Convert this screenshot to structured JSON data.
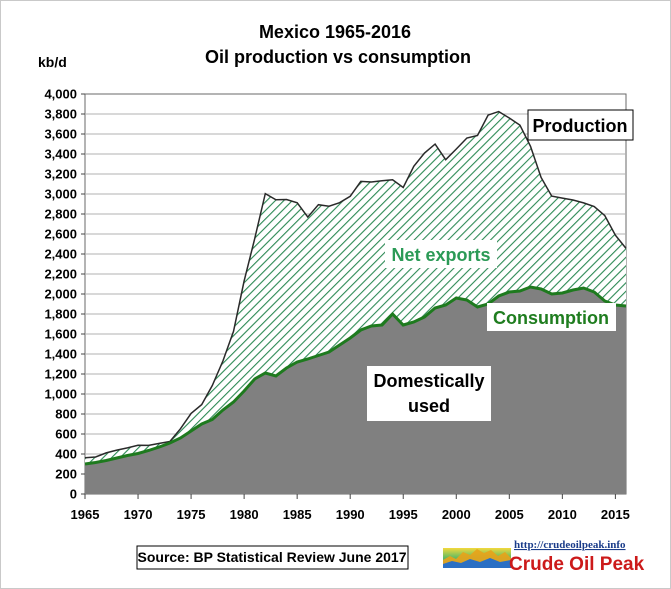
{
  "chart_data": {
    "type": "area",
    "title": "Mexico 1965-2016",
    "subtitle": "Oil production vs consumption",
    "ylabel": "kb/d",
    "xlabel": "",
    "xlim": [
      1965,
      2016
    ],
    "ylim": [
      0,
      4000
    ],
    "x_ticks": [
      1965,
      1970,
      1975,
      1980,
      1985,
      1990,
      1995,
      2000,
      2005,
      2010,
      2015
    ],
    "y_ticks": [
      0,
      200,
      400,
      600,
      800,
      1000,
      1200,
      1400,
      1600,
      1800,
      2000,
      2200,
      2400,
      2600,
      2800,
      3000,
      3200,
      3400,
      3600,
      3800,
      4000
    ],
    "y_tick_labels": [
      "0",
      "200",
      "400",
      "600",
      "800",
      "1,000",
      "1,200",
      "1,400",
      "1,600",
      "1,800",
      "2,000",
      "2,200",
      "2,400",
      "2,600",
      "2,800",
      "3,000",
      "3,200",
      "3,400",
      "3,600",
      "3,800",
      "4,000"
    ],
    "grid": true,
    "years": [
      1965,
      1966,
      1967,
      1968,
      1969,
      1970,
      1971,
      1972,
      1973,
      1974,
      1975,
      1976,
      1977,
      1978,
      1979,
      1980,
      1981,
      1982,
      1983,
      1984,
      1985,
      1986,
      1987,
      1988,
      1989,
      1990,
      1991,
      1992,
      1993,
      1994,
      1995,
      1996,
      1997,
      1998,
      1999,
      2000,
      2001,
      2002,
      2003,
      2004,
      2005,
      2006,
      2007,
      2008,
      2009,
      2010,
      2011,
      2012,
      2013,
      2014,
      2015,
      2016
    ],
    "series": [
      {
        "name": "Production",
        "values": [
          362,
          370,
          411,
          439,
          461,
          487,
          486,
          506,
          525,
          653,
          806,
          894,
          1085,
          1330,
          1626,
          2129,
          2553,
          3004,
          2942,
          2945,
          2912,
          2769,
          2893,
          2878,
          2913,
          2977,
          3126,
          3120,
          3132,
          3142,
          3065,
          3277,
          3410,
          3499,
          3343,
          3450,
          3560,
          3585,
          3789,
          3824,
          3760,
          3689,
          3477,
          3165,
          2979,
          2959,
          2940,
          2911,
          2875,
          2784,
          2588,
          2456
        ]
      },
      {
        "name": "Consumption",
        "values": [
          300,
          315,
          335,
          360,
          385,
          405,
          435,
          470,
          510,
          560,
          630,
          700,
          745,
          840,
          920,
          1030,
          1150,
          1210,
          1180,
          1260,
          1320,
          1350,
          1385,
          1420,
          1490,
          1560,
          1640,
          1680,
          1690,
          1800,
          1690,
          1720,
          1770,
          1860,
          1890,
          1960,
          1940,
          1870,
          1900,
          1980,
          2020,
          2030,
          2070,
          2050,
          2000,
          2010,
          2040,
          2060,
          2020,
          1930,
          1890,
          1880
        ]
      }
    ],
    "area_labels": {
      "net_exports": "Net exports",
      "domestic_line1": "Domestically",
      "domestic_line2": "used"
    },
    "source": "Source: BP Statistical Review  June 2017",
    "colors": {
      "domestic_fill": "#808080",
      "hatch_line": "#2d8a55",
      "production_line": "#2a2a2a",
      "consumption_line": "#1e7a1e",
      "grid": "#b0b0b0",
      "net_exports_text": "#2b9a56",
      "consumption_text": "#1f7d1f"
    }
  },
  "logo": {
    "url": "http://crudeoilpeak.info",
    "name": "Crude Oil Peak"
  }
}
